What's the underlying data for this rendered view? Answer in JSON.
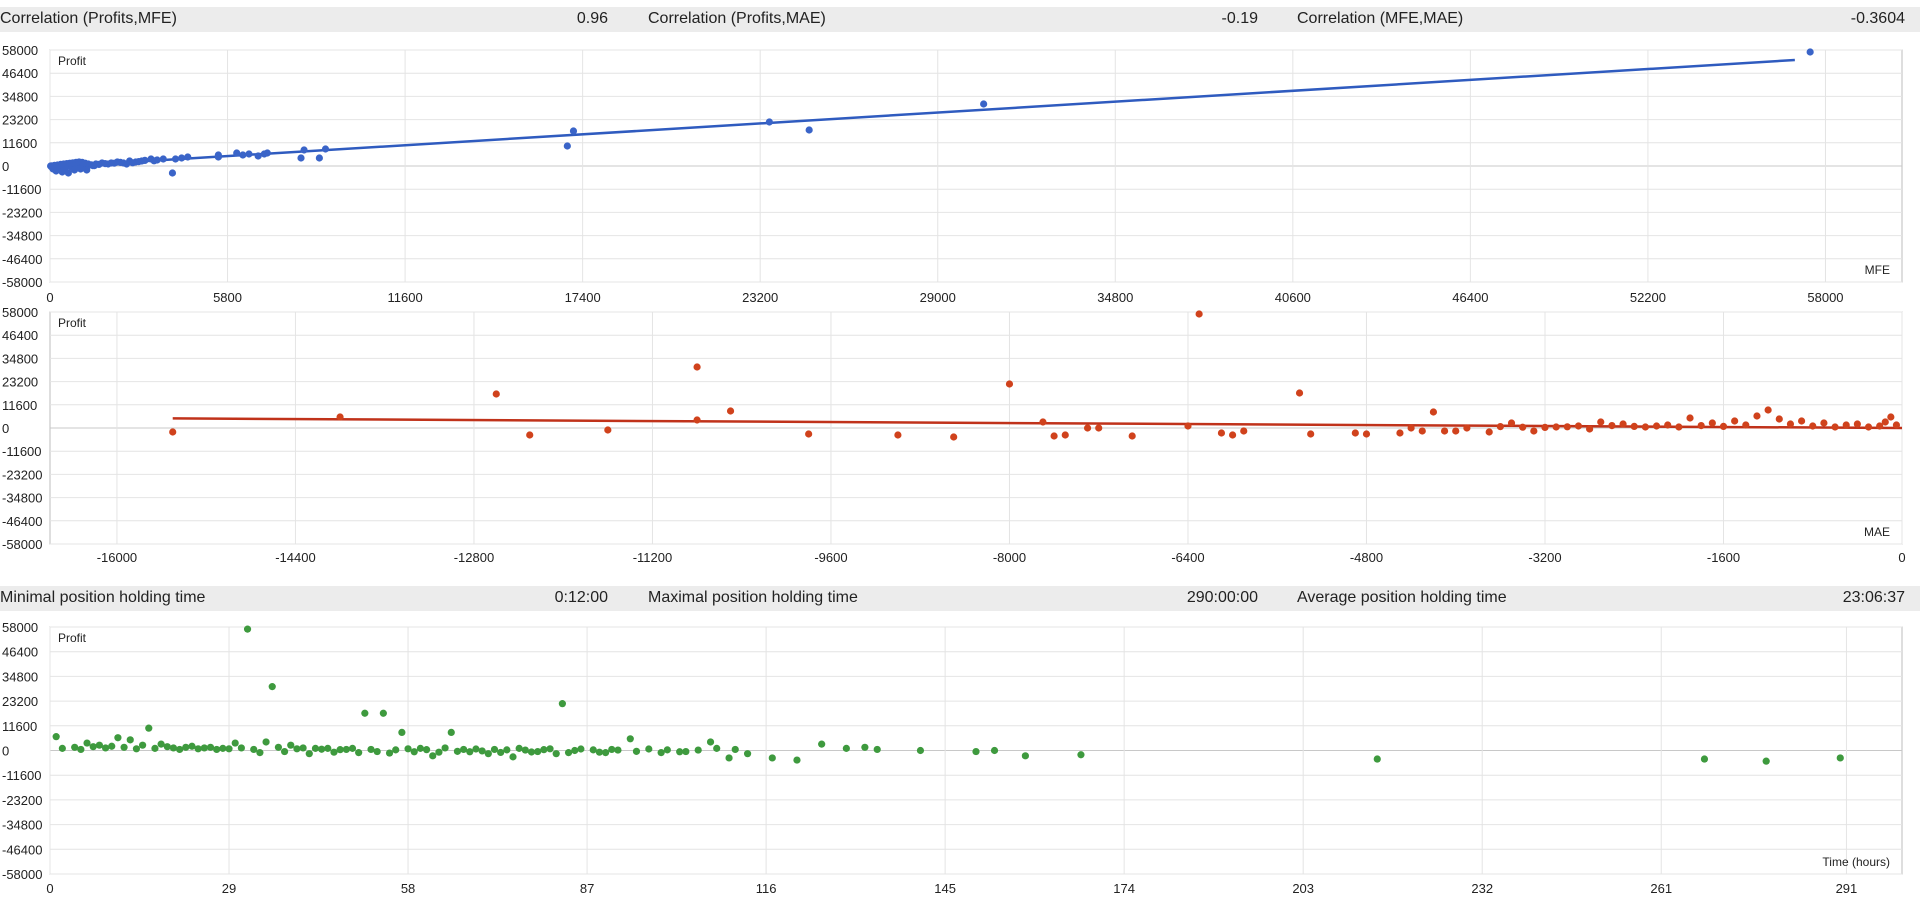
{
  "stats_top": [
    {
      "label": "Correlation (Profits,MFE)",
      "value": "0.96"
    },
    {
      "label": "Correlation (Profits,MAE)",
      "value": "-0.19"
    },
    {
      "label": "Correlation (MFE,MAE)",
      "value": "-0.3604"
    }
  ],
  "stats_bottom": [
    {
      "label": "Minimal position holding time",
      "value": "0:12:00"
    },
    {
      "label": "Maximal position holding time",
      "value": "290:00:00"
    },
    {
      "label": "Average position holding time",
      "value": "23:06:37"
    }
  ],
  "colors": {
    "mfe": "#3a64c8",
    "mae": "#d0421c",
    "mfe_line": "#2f5bbf",
    "mae_line": "#c0321a",
    "time": "#3e9a3e",
    "grid": "#e4e4e4",
    "axis": "#bdbdbd"
  },
  "chart_data": [
    {
      "type": "scatter",
      "ylabel": "Profit",
      "xlabel": "MFE",
      "xlim": [
        0,
        60500
      ],
      "ylim": [
        -58000,
        58000
      ],
      "xticks": [
        "0",
        "5800",
        "11600",
        "17400",
        "23200",
        "29000",
        "34800",
        "40600",
        "46400",
        "52200",
        "58000"
      ],
      "xtick_values": [
        0,
        5800,
        11600,
        17400,
        23200,
        29000,
        34800,
        40600,
        46400,
        52200,
        58000
      ],
      "yticks": [
        "58000",
        "46400",
        "34800",
        "23200",
        "11600",
        "0",
        "-11600",
        "-23200",
        "-34800",
        "-46400",
        "-58000"
      ],
      "ytick_values": [
        58000,
        46400,
        34800,
        23200,
        11600,
        0,
        -11600,
        -23200,
        -34800,
        -46400,
        -58000
      ],
      "trend": {
        "x1": 0,
        "y1": -500,
        "x2": 57000,
        "y2": 53000
      },
      "points": [
        [
          57500,
          57000
        ],
        [
          30500,
          31000
        ],
        [
          24800,
          18000
        ],
        [
          23500,
          22000
        ],
        [
          17100,
          17500
        ],
        [
          16900,
          10000
        ],
        [
          9000,
          8500
        ],
        [
          8300,
          8000
        ],
        [
          8800,
          4000
        ],
        [
          8200,
          4000
        ],
        [
          7100,
          6500
        ],
        [
          7000,
          6000
        ],
        [
          6800,
          5000
        ],
        [
          6500,
          6000
        ],
        [
          6300,
          5500
        ],
        [
          6100,
          6500
        ],
        [
          5500,
          5500
        ],
        [
          5500,
          4500
        ],
        [
          4500,
          4500
        ],
        [
          4300,
          4000
        ],
        [
          4100,
          3500
        ],
        [
          4000,
          -3500
        ],
        [
          3700,
          3500
        ],
        [
          3500,
          3000
        ],
        [
          3300,
          3500
        ],
        [
          3000,
          2500
        ],
        [
          2800,
          2000
        ],
        [
          2600,
          2500
        ],
        [
          2400,
          1500
        ],
        [
          2200,
          2000
        ],
        [
          2000,
          1500
        ],
        [
          1900,
          1000
        ],
        [
          1700,
          1500
        ],
        [
          1500,
          1000
        ],
        [
          1300,
          500
        ],
        [
          1100,
          500
        ],
        [
          900,
          0
        ],
        [
          700,
          -500
        ],
        [
          500,
          -1000
        ],
        [
          300,
          -1500
        ],
        [
          200,
          -2500
        ],
        [
          100,
          -1500
        ],
        [
          50,
          -500
        ],
        [
          600,
          -3500
        ],
        [
          800,
          -2000
        ],
        [
          400,
          -3000
        ],
        [
          1000,
          -1500
        ],
        [
          1200,
          -2000
        ],
        [
          1400,
          200
        ],
        [
          1600,
          800
        ],
        [
          1800,
          1200
        ],
        [
          2100,
          1400
        ],
        [
          2300,
          1800
        ],
        [
          2500,
          1000
        ],
        [
          2700,
          1600
        ],
        [
          2900,
          2200
        ],
        [
          3100,
          2800
        ],
        [
          3400,
          2600
        ],
        [
          150,
          300
        ],
        [
          250,
          500
        ],
        [
          350,
          800
        ],
        [
          450,
          1000
        ],
        [
          550,
          1200
        ],
        [
          650,
          1400
        ],
        [
          750,
          1600
        ],
        [
          850,
          1800
        ],
        [
          950,
          2000
        ],
        [
          1050,
          1800
        ],
        [
          1150,
          1400
        ],
        [
          1250,
          1000
        ],
        [
          1350,
          600
        ],
        [
          1450,
          200
        ],
        [
          20,
          0
        ],
        [
          60,
          100
        ],
        [
          120,
          -200
        ],
        [
          180,
          200
        ],
        [
          230,
          -800
        ]
      ]
    },
    {
      "type": "scatter",
      "ylabel": "Profit",
      "xlabel": "MAE",
      "xlim": [
        -16600,
        0
      ],
      "ylim": [
        -58000,
        58000
      ],
      "xticks": [
        "-16000",
        "-14400",
        "-12800",
        "-11200",
        "-9600",
        "-8000",
        "-6400",
        "-4800",
        "-3200",
        "-1600",
        "0"
      ],
      "xtick_values": [
        -16000,
        -14400,
        -12800,
        -11200,
        -9600,
        -8000,
        -6400,
        -4800,
        -3200,
        -1600,
        0
      ],
      "yticks": [
        "58000",
        "46400",
        "34800",
        "23200",
        "11600",
        "0",
        "-11600",
        "-23200",
        "-34800",
        "-46400",
        "-58000"
      ],
      "ytick_values": [
        58000,
        46400,
        34800,
        23200,
        11600,
        0,
        -11600,
        -23200,
        -34800,
        -46400,
        -58000
      ],
      "trend": {
        "x1": -15500,
        "y1": 4800,
        "x2": 0,
        "y2": 0
      },
      "points": [
        [
          -15500,
          -2000
        ],
        [
          -14000,
          5500
        ],
        [
          -12600,
          17000
        ],
        [
          -12300,
          -3500
        ],
        [
          -11600,
          -1000
        ],
        [
          -10800,
          30500
        ],
        [
          -10800,
          4000
        ],
        [
          -10500,
          8500
        ],
        [
          -9800,
          -3000
        ],
        [
          -9000,
          -3500
        ],
        [
          -8500,
          -4500
        ],
        [
          -8000,
          22000
        ],
        [
          -7700,
          3000
        ],
        [
          -7600,
          -4000
        ],
        [
          -7500,
          -3500
        ],
        [
          -7300,
          0
        ],
        [
          -7200,
          0
        ],
        [
          -6900,
          -4000
        ],
        [
          -6400,
          1000
        ],
        [
          -6300,
          57000
        ],
        [
          -6100,
          -2500
        ],
        [
          -6000,
          -3500
        ],
        [
          -5900,
          -1500
        ],
        [
          -5400,
          17500
        ],
        [
          -5300,
          -3000
        ],
        [
          -4900,
          -2500
        ],
        [
          -4800,
          -3000
        ],
        [
          -4500,
          -2500
        ],
        [
          -4400,
          0
        ],
        [
          -4300,
          -1500
        ],
        [
          -4200,
          8000
        ],
        [
          -4100,
          -1500
        ],
        [
          -4000,
          -1500
        ],
        [
          -3900,
          0
        ],
        [
          -3700,
          -2000
        ],
        [
          -3500,
          2500
        ],
        [
          -3300,
          -1500
        ],
        [
          -3100,
          500
        ],
        [
          -2900,
          1000
        ],
        [
          -2700,
          3000
        ],
        [
          -2500,
          2000
        ],
        [
          -2300,
          500
        ],
        [
          -2100,
          1500
        ],
        [
          -1900,
          5000
        ],
        [
          -1700,
          2500
        ],
        [
          -1500,
          3500
        ],
        [
          -1300,
          6000
        ],
        [
          -1200,
          9000
        ],
        [
          -1100,
          4500
        ],
        [
          -1000,
          2000
        ],
        [
          -900,
          3500
        ],
        [
          -800,
          1000
        ],
        [
          -700,
          2500
        ],
        [
          -600,
          500
        ],
        [
          -500,
          1500
        ],
        [
          -400,
          2000
        ],
        [
          -300,
          500
        ],
        [
          -200,
          1000
        ],
        [
          -100,
          5500
        ],
        [
          -50,
          1500
        ],
        [
          -2800,
          -500
        ],
        [
          -2600,
          1200
        ],
        [
          -2400,
          800
        ],
        [
          -2200,
          1000
        ],
        [
          -2000,
          500
        ],
        [
          -1800,
          1200
        ],
        [
          -1600,
          800
        ],
        [
          -1400,
          1500
        ],
        [
          -3600,
          700
        ],
        [
          -3400,
          400
        ],
        [
          -3200,
          300
        ],
        [
          -3000,
          600
        ],
        [
          -150,
          3000
        ]
      ]
    },
    {
      "type": "scatter",
      "ylabel": "Profit",
      "xlabel": "Time (hours)",
      "xlim": [
        0,
        300
      ],
      "ylim": [
        -58000,
        58000
      ],
      "xticks": [
        "0",
        "29",
        "58",
        "87",
        "116",
        "145",
        "174",
        "203",
        "232",
        "261",
        "291"
      ],
      "xtick_values": [
        0,
        29,
        58,
        87,
        116,
        145,
        174,
        203,
        232,
        261,
        291
      ],
      "yticks": [
        "58000",
        "46400",
        "34800",
        "23200",
        "11600",
        "0",
        "-11600",
        "-23200",
        "-34800",
        "-46400",
        "-58000"
      ],
      "ytick_values": [
        58000,
        46400,
        34800,
        23200,
        11600,
        0,
        -11600,
        -23200,
        -34800,
        -46400,
        -58000
      ],
      "points": [
        [
          32,
          57000
        ],
        [
          36,
          30000
        ],
        [
          51,
          17500
        ],
        [
          54,
          17500
        ],
        [
          83,
          22000
        ],
        [
          57,
          8500
        ],
        [
          65,
          8500
        ],
        [
          16,
          10500
        ],
        [
          1,
          6500
        ],
        [
          11,
          6000
        ],
        [
          13,
          5000
        ],
        [
          6,
          3500
        ],
        [
          8,
          2500
        ],
        [
          18,
          3000
        ],
        [
          23,
          2000
        ],
        [
          26,
          1500
        ],
        [
          30,
          3500
        ],
        [
          35,
          4000
        ],
        [
          39,
          2500
        ],
        [
          43,
          1000
        ],
        [
          48,
          500
        ],
        [
          53,
          -500
        ],
        [
          60,
          1000
        ],
        [
          62,
          -2500
        ],
        [
          67,
          500
        ],
        [
          71,
          -1500
        ],
        [
          75,
          -3000
        ],
        [
          79,
          -500
        ],
        [
          82,
          -1500
        ],
        [
          85,
          0
        ],
        [
          90,
          -1000
        ],
        [
          94,
          5500
        ],
        [
          99,
          -1000
        ],
        [
          103,
          -500
        ],
        [
          107,
          4000
        ],
        [
          110,
          -3500
        ],
        [
          113,
          -1500
        ],
        [
          117,
          -3500
        ],
        [
          121,
          -4500
        ],
        [
          125,
          3000
        ],
        [
          129,
          1000
        ],
        [
          132,
          1500
        ],
        [
          134,
          500
        ],
        [
          141,
          0
        ],
        [
          150,
          -500
        ],
        [
          153,
          0
        ],
        [
          158,
          -2500
        ],
        [
          167,
          -2000
        ],
        [
          215,
          -4000
        ],
        [
          268,
          -4000
        ],
        [
          278,
          -5000
        ],
        [
          290,
          -3500
        ],
        [
          2,
          1000
        ],
        [
          4,
          1500
        ],
        [
          5,
          500
        ],
        [
          7,
          1800
        ],
        [
          9,
          1200
        ],
        [
          10,
          2000
        ],
        [
          12,
          1500
        ],
        [
          14,
          800
        ],
        [
          15,
          2500
        ],
        [
          17,
          1000
        ],
        [
          19,
          1800
        ],
        [
          20,
          1200
        ],
        [
          21,
          500
        ],
        [
          22,
          1500
        ],
        [
          24,
          800
        ],
        [
          25,
          1200
        ],
        [
          27,
          500
        ],
        [
          28,
          1000
        ],
        [
          29,
          800
        ],
        [
          31,
          1200
        ],
        [
          33,
          500
        ],
        [
          34,
          -1000
        ],
        [
          37,
          1500
        ],
        [
          38,
          -500
        ],
        [
          40,
          800
        ],
        [
          41,
          1200
        ],
        [
          42,
          -1500
        ],
        [
          44,
          600
        ],
        [
          45,
          1000
        ],
        [
          46,
          -800
        ],
        [
          47,
          400
        ],
        [
          49,
          1000
        ],
        [
          50,
          -1000
        ],
        [
          52,
          500
        ],
        [
          55,
          -1200
        ],
        [
          56,
          300
        ],
        [
          58,
          800
        ],
        [
          59,
          -600
        ],
        [
          61,
          400
        ],
        [
          63,
          -800
        ],
        [
          64,
          1200
        ],
        [
          66,
          -400
        ],
        [
          68,
          -600
        ],
        [
          69,
          700
        ],
        [
          70,
          -200
        ],
        [
          72,
          500
        ],
        [
          73,
          -900
        ],
        [
          74,
          300
        ],
        [
          76,
          1000
        ],
        [
          77,
          200
        ],
        [
          78,
          -700
        ],
        [
          80,
          400
        ],
        [
          81,
          800
        ],
        [
          84,
          -1000
        ],
        [
          86,
          700
        ],
        [
          88,
          300
        ],
        [
          89,
          -800
        ],
        [
          91,
          500
        ],
        [
          92,
          200
        ],
        [
          95,
          -400
        ],
        [
          97,
          700
        ],
        [
          100,
          300
        ],
        [
          102,
          -600
        ],
        [
          105,
          200
        ],
        [
          108,
          1000
        ],
        [
          111,
          500
        ]
      ]
    }
  ]
}
